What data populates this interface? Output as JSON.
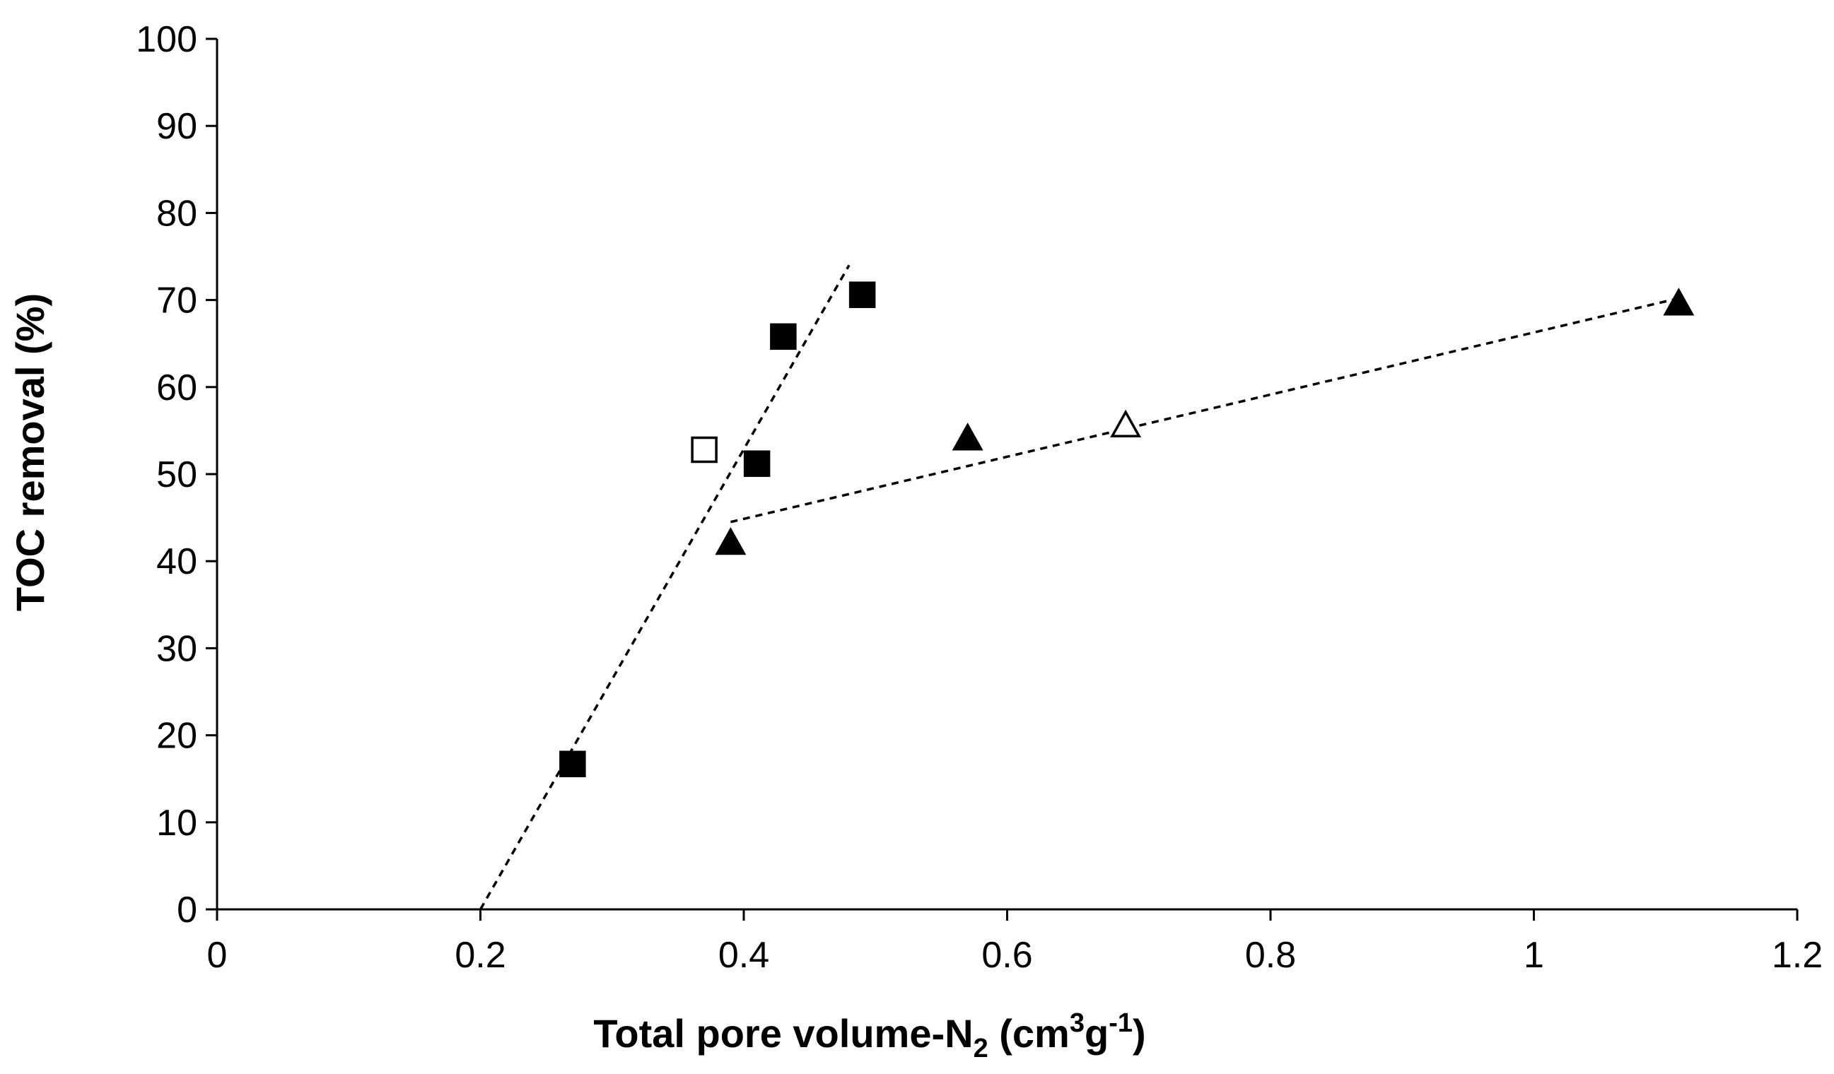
{
  "chart_data": {
    "type": "scatter",
    "title": "",
    "xlabel": {
      "main": "Total pore volume-N",
      "sub": "2",
      "unit_open": " (cm",
      "sup1": "3",
      "unit_mid": "g",
      "sup2": "-1",
      "unit_close": ")"
    },
    "ylabel": "TOC removal (%)",
    "xlim": [
      0,
      1.2
    ],
    "ylim": [
      0,
      100
    ],
    "xticks": [
      0,
      0.2,
      0.4,
      0.6,
      0.8,
      1,
      1.2
    ],
    "xtick_labels": [
      "0",
      "0.2",
      "0.4",
      "0.6",
      "0.8",
      "1",
      "1.2"
    ],
    "yticks": [
      0,
      10,
      20,
      30,
      40,
      50,
      60,
      70,
      80,
      90,
      100
    ],
    "ytick_labels": [
      "0",
      "10",
      "20",
      "30",
      "40",
      "50",
      "60",
      "70",
      "80",
      "90",
      "100"
    ],
    "grid": false,
    "series": [
      {
        "name": "filled squares",
        "marker": "square",
        "filled": true,
        "points": [
          {
            "x": 0.27,
            "y": 16.7
          },
          {
            "x": 0.41,
            "y": 51.2
          },
          {
            "x": 0.43,
            "y": 65.8
          },
          {
            "x": 0.49,
            "y": 70.6
          }
        ]
      },
      {
        "name": "open square",
        "marker": "square",
        "filled": false,
        "points": [
          {
            "x": 0.37,
            "y": 52.8
          }
        ]
      },
      {
        "name": "filled triangles",
        "marker": "triangle",
        "filled": true,
        "points": [
          {
            "x": 0.39,
            "y": 42.0
          },
          {
            "x": 0.57,
            "y": 54.0
          },
          {
            "x": 1.11,
            "y": 69.5
          }
        ]
      },
      {
        "name": "open triangle",
        "marker": "triangle",
        "filled": false,
        "points": [
          {
            "x": 0.69,
            "y": 55.5
          }
        ]
      }
    ],
    "trendlines": [
      {
        "name": "square trend",
        "style": "dashed",
        "from": {
          "x": 0.2,
          "y": 0
        },
        "to": {
          "x": 0.48,
          "y": 74
        }
      },
      {
        "name": "triangle trend",
        "style": "dashed",
        "from": {
          "x": 0.39,
          "y": 44.5
        },
        "to": {
          "x": 1.11,
          "y": 70.2
        }
      }
    ]
  }
}
